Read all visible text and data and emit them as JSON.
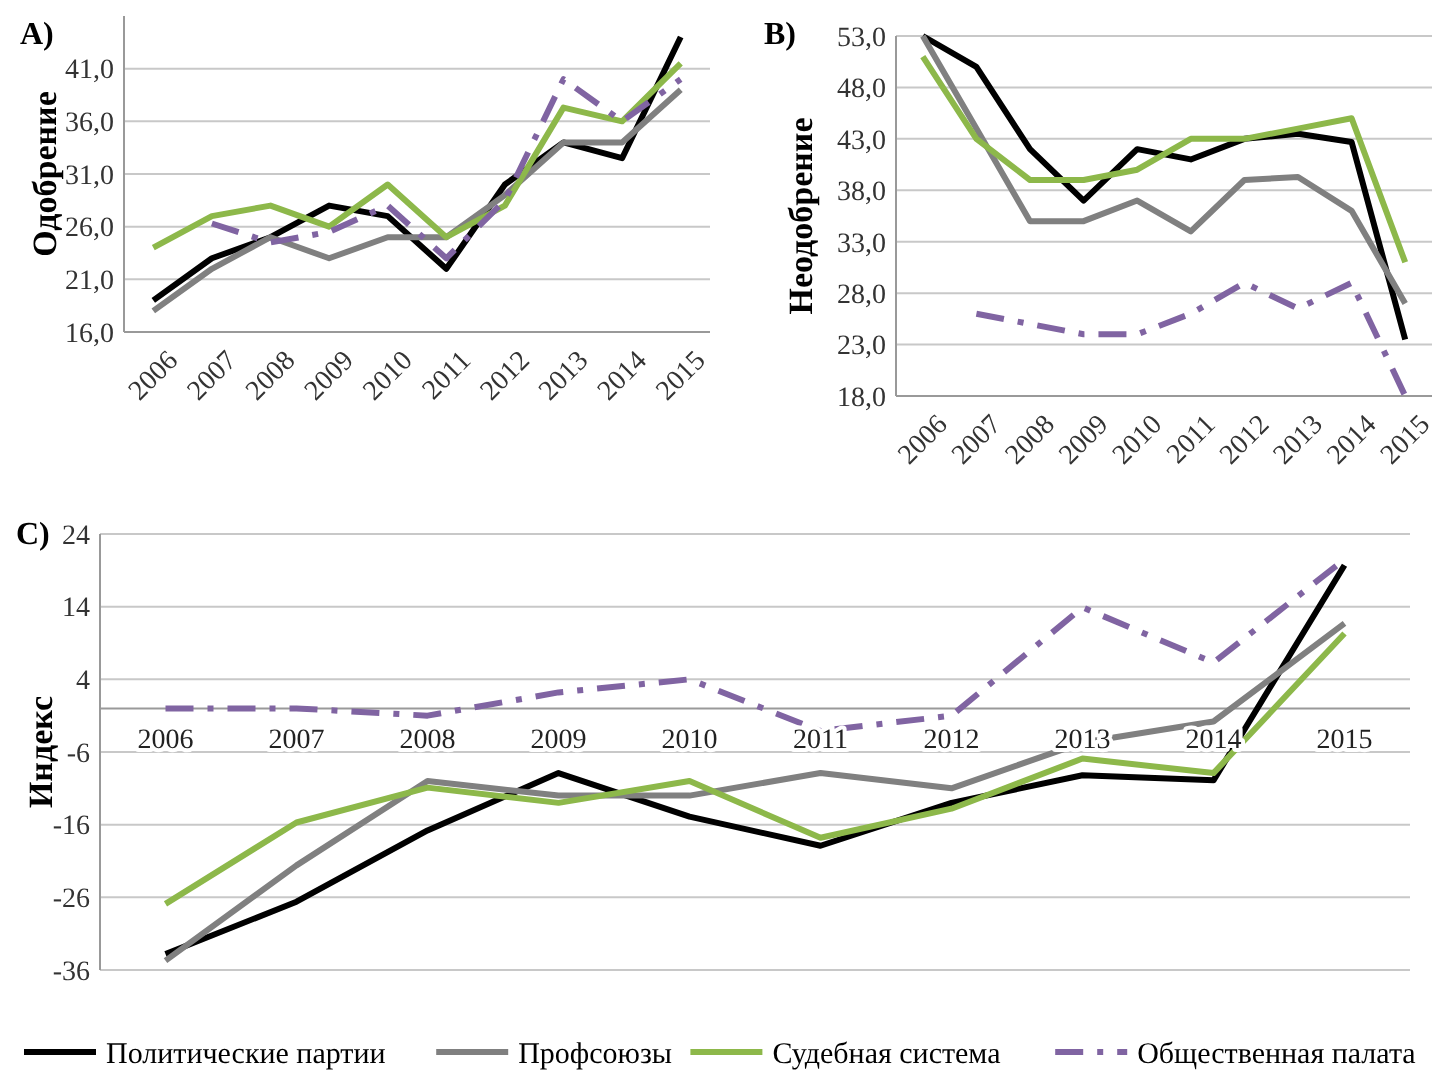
{
  "chart_data": [
    {
      "type": "line",
      "title": "A)",
      "ylabel": "Одобрение",
      "categories": [
        "2006",
        "2007",
        "2008",
        "2009",
        "2010",
        "2011",
        "2012",
        "2013",
        "2014",
        "2015"
      ],
      "ylim": [
        16,
        46
      ],
      "yticks": [
        {
          "value": 16,
          "label": "16,0"
        },
        {
          "value": 21,
          "label": "21,0"
        },
        {
          "value": 26,
          "label": "26,0"
        },
        {
          "value": 31,
          "label": "31,0"
        },
        {
          "value": 36,
          "label": "36,0"
        },
        {
          "value": 41,
          "label": "41,0"
        }
      ],
      "grid": "y",
      "series": [
        {
          "color": "#000000",
          "values": [
            19,
            23,
            25,
            28,
            27,
            22,
            30,
            34,
            32.5,
            44
          ]
        },
        {
          "color": "#808080",
          "values": [
            18,
            22,
            25,
            23,
            25,
            25,
            29,
            34,
            34,
            39
          ]
        },
        {
          "color": "#8db84a",
          "values": [
            24,
            27,
            28,
            26,
            30,
            25,
            28,
            37.3,
            36,
            41.5
          ]
        },
        {
          "color": "#8064a2",
          "line_style": "dashed",
          "values": [
            null,
            26.3,
            24.5,
            25.5,
            28,
            23,
            28.5,
            40,
            36,
            40
          ]
        }
      ]
    },
    {
      "type": "line",
      "title": "B)",
      "ylabel": "Неодобрение",
      "categories": [
        "2006",
        "2007",
        "2008",
        "2009",
        "2010",
        "2011",
        "2012",
        "2013",
        "2014",
        "2015"
      ],
      "ylim": [
        18,
        53
      ],
      "yticks": [
        {
          "value": 18,
          "label": "18,0"
        },
        {
          "value": 23,
          "label": "23,0"
        },
        {
          "value": 28,
          "label": "28,0"
        },
        {
          "value": 33,
          "label": "33,0"
        },
        {
          "value": 38,
          "label": "38,0"
        },
        {
          "value": 43,
          "label": "43,0"
        },
        {
          "value": 48,
          "label": "48,0"
        },
        {
          "value": 53,
          "label": "53,0"
        }
      ],
      "grid": "y",
      "series": [
        {
          "color": "#000000",
          "values": [
            53,
            50,
            42,
            37,
            42,
            41,
            43,
            43.5,
            42.7,
            23.5
          ]
        },
        {
          "color": "#808080",
          "values": [
            53,
            44,
            35,
            35,
            37,
            34,
            39,
            39.3,
            36,
            27
          ]
        },
        {
          "color": "#8db84a",
          "values": [
            51,
            43,
            39,
            39,
            40,
            43,
            43,
            44,
            45,
            31
          ]
        },
        {
          "color": "#8064a2",
          "line_style": "dashed",
          "values": [
            null,
            26,
            25,
            24,
            24,
            26,
            29,
            26.5,
            29,
            18
          ]
        }
      ]
    },
    {
      "type": "line",
      "title": "C)",
      "ylabel": "Индекс",
      "categories": [
        "2006",
        "2007",
        "2008",
        "2009",
        "2010",
        "2011",
        "2012",
        "2013",
        "2014",
        "2015"
      ],
      "ylim": [
        -36,
        24
      ],
      "yticks": [
        -36,
        -26,
        -16,
        -6,
        4,
        14,
        24
      ],
      "grid": "y",
      "legend": "bottom",
      "series": [
        {
          "name": "Политические партии",
          "color": "#000000",
          "values": [
            -33.8,
            -26.6,
            -16.8,
            -8.9,
            -14.9,
            -18.9,
            -13,
            -9.2,
            -9.9,
            19.7
          ]
        },
        {
          "name": "Профсоюзы",
          "color": "#808080",
          "values": [
            -34.7,
            -21.6,
            -10,
            -12,
            -12,
            -8.9,
            -11,
            -4.7,
            -1.8,
            11.7
          ]
        },
        {
          "name": "Судебная система",
          "color": "#8db84a",
          "values": [
            -26.9,
            -15.7,
            -10.9,
            -13,
            -10,
            -17.8,
            -13.8,
            -6.9,
            -8.9,
            10.3
          ]
        },
        {
          "name": "Общественная палата",
          "color": "#8064a2",
          "line_style": "dashed",
          "values": [
            0,
            0,
            -1,
            2.2,
            4,
            -3.1,
            -1,
            13.9,
            6.3,
            20.5
          ]
        }
      ]
    }
  ]
}
